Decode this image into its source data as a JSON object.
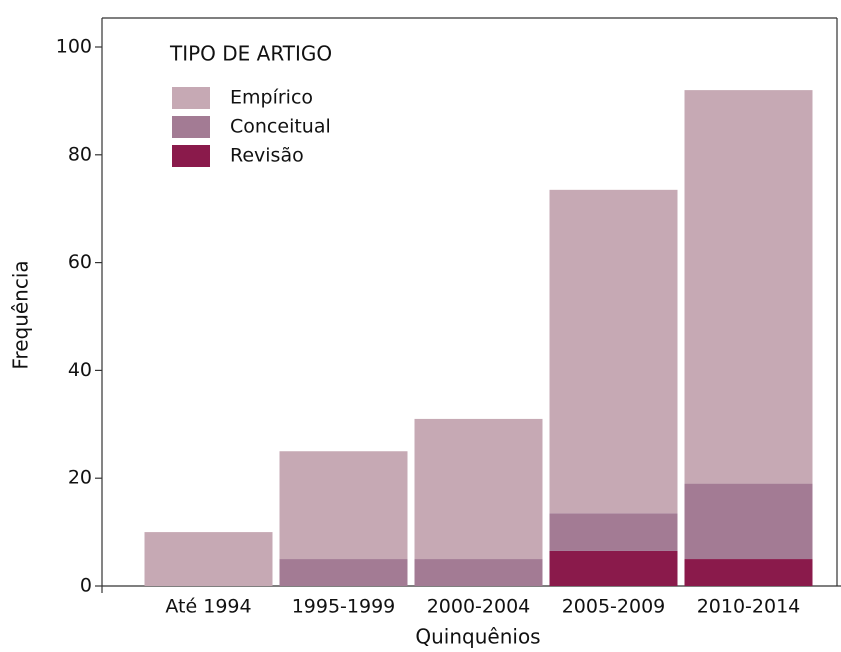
{
  "chart_data": {
    "type": "stacked_bar",
    "categories": [
      "Até 1994",
      "1995-1999",
      "2000-2004",
      "2005-2009",
      "2010-2014"
    ],
    "series": [
      {
        "name": "Empírico",
        "color": "#c6a9b4",
        "values": [
          10,
          20,
          26,
          60,
          73
        ]
      },
      {
        "name": "Conceitual",
        "color": "#a37b94",
        "values": [
          0,
          5,
          5,
          7,
          14
        ]
      },
      {
        "name": "Revisão",
        "color": "#8a1a4b",
        "values": [
          0,
          0,
          0,
          6.5,
          5
        ]
      }
    ],
    "legend_title": "TIPO DE ARTIGO",
    "xlabel": "Quinquênios",
    "ylabel": "Frequência",
    "ylim": [
      0,
      100
    ],
    "yticks": [
      0,
      20,
      40,
      60,
      80,
      100
    ],
    "grid": false,
    "legend": "upper left"
  }
}
